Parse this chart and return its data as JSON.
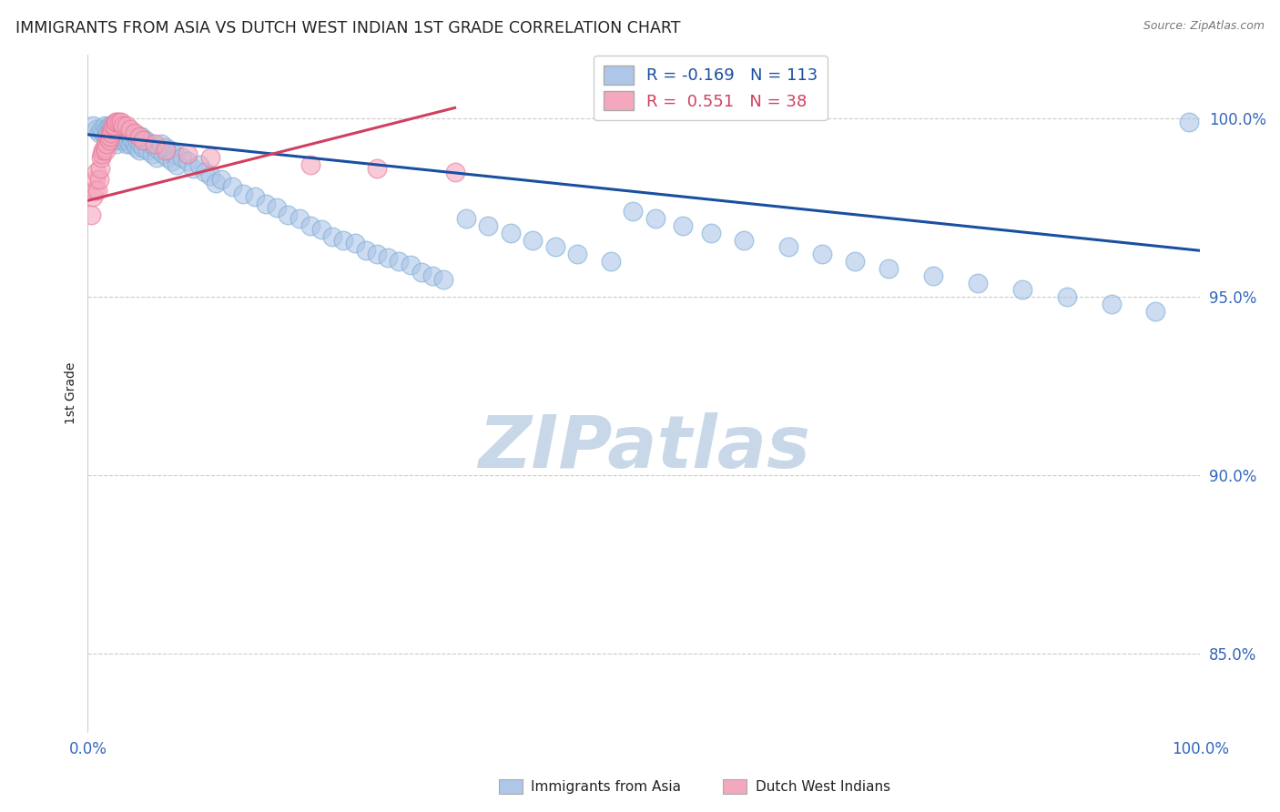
{
  "title": "IMMIGRANTS FROM ASIA VS DUTCH WEST INDIAN 1ST GRADE CORRELATION CHART",
  "source": "Source: ZipAtlas.com",
  "ylabel": "1st Grade",
  "watermark": "ZIPatlas",
  "blue_R": -0.169,
  "blue_N": 113,
  "pink_R": 0.551,
  "pink_N": 38,
  "blue_label": "Immigrants from Asia",
  "pink_label": "Dutch West Indians",
  "blue_color": "#aec6e8",
  "pink_color": "#f4a8be",
  "blue_edge_color": "#7bafd4",
  "pink_edge_color": "#e87898",
  "blue_line_color": "#1a4fa0",
  "pink_line_color": "#d04060",
  "y_tick_labels": [
    "85.0%",
    "90.0%",
    "95.0%",
    "100.0%"
  ],
  "y_tick_values": [
    0.85,
    0.9,
    0.95,
    1.0
  ],
  "xlim": [
    0.0,
    1.0
  ],
  "ylim": [
    0.828,
    1.018
  ],
  "blue_scatter_x": [
    0.005,
    0.008,
    0.01,
    0.012,
    0.014,
    0.015,
    0.016,
    0.017,
    0.018,
    0.019,
    0.02,
    0.02,
    0.021,
    0.022,
    0.022,
    0.023,
    0.023,
    0.024,
    0.025,
    0.025,
    0.026,
    0.026,
    0.027,
    0.028,
    0.029,
    0.03,
    0.03,
    0.031,
    0.032,
    0.033,
    0.034,
    0.035,
    0.035,
    0.036,
    0.037,
    0.038,
    0.038,
    0.04,
    0.041,
    0.042,
    0.043,
    0.044,
    0.045,
    0.046,
    0.047,
    0.048,
    0.05,
    0.052,
    0.054,
    0.056,
    0.058,
    0.06,
    0.062,
    0.064,
    0.066,
    0.068,
    0.07,
    0.072,
    0.074,
    0.076,
    0.078,
    0.08,
    0.085,
    0.09,
    0.095,
    0.1,
    0.105,
    0.11,
    0.115,
    0.12,
    0.13,
    0.14,
    0.15,
    0.16,
    0.17,
    0.18,
    0.19,
    0.2,
    0.21,
    0.22,
    0.23,
    0.24,
    0.25,
    0.26,
    0.27,
    0.28,
    0.29,
    0.3,
    0.31,
    0.32,
    0.34,
    0.36,
    0.38,
    0.4,
    0.42,
    0.44,
    0.47,
    0.49,
    0.51,
    0.535,
    0.56,
    0.59,
    0.63,
    0.66,
    0.69,
    0.72,
    0.76,
    0.8,
    0.84,
    0.88,
    0.92,
    0.96,
    0.99
  ],
  "blue_scatter_y": [
    0.998,
    0.997,
    0.996,
    0.997,
    0.996,
    0.998,
    0.995,
    0.997,
    0.996,
    0.998,
    0.997,
    0.995,
    0.998,
    0.996,
    0.994,
    0.997,
    0.995,
    0.996,
    0.998,
    0.994,
    0.997,
    0.993,
    0.996,
    0.995,
    0.997,
    0.996,
    0.994,
    0.995,
    0.997,
    0.994,
    0.996,
    0.995,
    0.993,
    0.994,
    0.996,
    0.993,
    0.995,
    0.994,
    0.996,
    0.993,
    0.995,
    0.992,
    0.994,
    0.991,
    0.993,
    0.995,
    0.992,
    0.994,
    0.991,
    0.993,
    0.99,
    0.992,
    0.989,
    0.991,
    0.993,
    0.99,
    0.992,
    0.989,
    0.991,
    0.988,
    0.99,
    0.987,
    0.989,
    0.988,
    0.986,
    0.987,
    0.985,
    0.984,
    0.982,
    0.983,
    0.981,
    0.979,
    0.978,
    0.976,
    0.975,
    0.973,
    0.972,
    0.97,
    0.969,
    0.967,
    0.966,
    0.965,
    0.963,
    0.962,
    0.961,
    0.96,
    0.959,
    0.957,
    0.956,
    0.955,
    0.972,
    0.97,
    0.968,
    0.966,
    0.964,
    0.962,
    0.96,
    0.974,
    0.972,
    0.97,
    0.968,
    0.966,
    0.964,
    0.962,
    0.96,
    0.958,
    0.956,
    0.954,
    0.952,
    0.95,
    0.948,
    0.946,
    0.999
  ],
  "pink_scatter_x": [
    0.003,
    0.005,
    0.006,
    0.007,
    0.008,
    0.009,
    0.01,
    0.011,
    0.012,
    0.013,
    0.014,
    0.015,
    0.016,
    0.017,
    0.018,
    0.019,
    0.02,
    0.021,
    0.022,
    0.023,
    0.024,
    0.025,
    0.026,
    0.028,
    0.03,
    0.032,
    0.035,
    0.038,
    0.042,
    0.046,
    0.05,
    0.06,
    0.07,
    0.09,
    0.11,
    0.2,
    0.26,
    0.33
  ],
  "pink_scatter_y": [
    0.973,
    0.978,
    0.98,
    0.983,
    0.985,
    0.98,
    0.983,
    0.986,
    0.989,
    0.99,
    0.991,
    0.992,
    0.991,
    0.993,
    0.995,
    0.994,
    0.995,
    0.996,
    0.997,
    0.998,
    0.998,
    0.999,
    0.999,
    0.999,
    0.999,
    0.998,
    0.998,
    0.997,
    0.996,
    0.995,
    0.994,
    0.993,
    0.991,
    0.99,
    0.989,
    0.987,
    0.986,
    0.985
  ],
  "blue_trend_x": [
    0.0,
    1.0
  ],
  "blue_trend_y": [
    0.9955,
    0.963
  ],
  "pink_trend_x": [
    0.0,
    0.33
  ],
  "pink_trend_y": [
    0.977,
    1.003
  ],
  "grid_color": "#cccccc",
  "title_color": "#222222",
  "axis_label_color": "#3366bb",
  "source_color": "#777777",
  "watermark_color": "#c8d8e8",
  "legend_text_blue_color": "#1a4fa0",
  "legend_text_pink_color": "#d04060"
}
